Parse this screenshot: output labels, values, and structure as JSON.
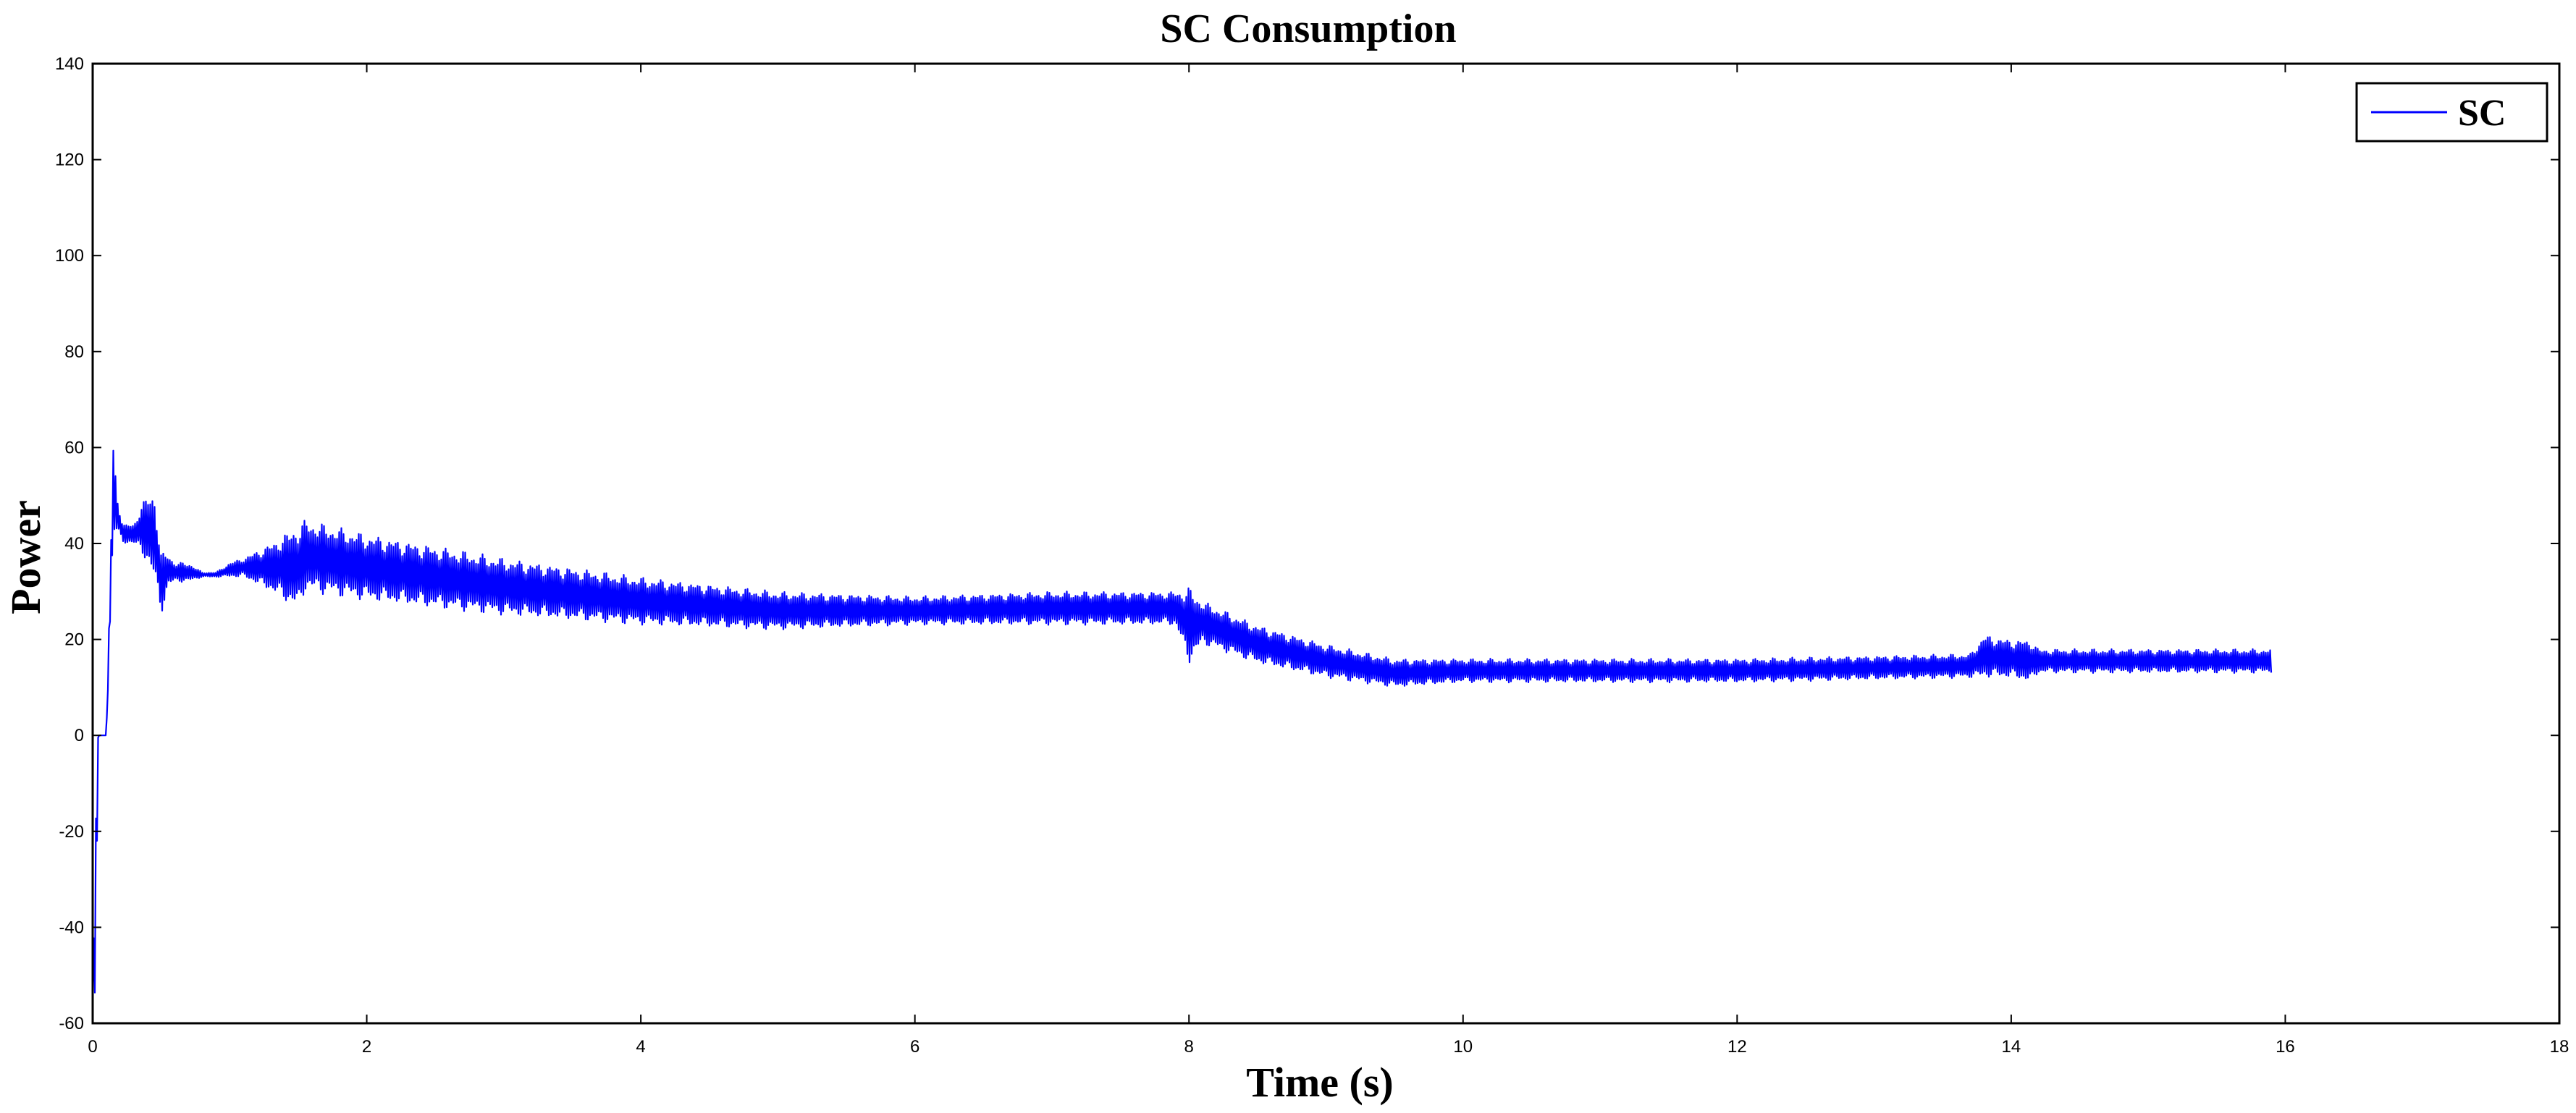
{
  "chart_data": {
    "type": "line",
    "title": "SC Consumption",
    "xlabel": "Time (s)",
    "ylabel": "Power",
    "xlim": [
      0,
      18
    ],
    "ylim": [
      -60,
      140
    ],
    "xticks": [
      0,
      2,
      4,
      6,
      8,
      10,
      12,
      14,
      16,
      18
    ],
    "yticks": [
      -60,
      -40,
      -20,
      0,
      20,
      40,
      60,
      80,
      100,
      120,
      140
    ],
    "xtick_labels": [
      "0",
      "2",
      "4",
      "6",
      "8",
      "10",
      "12",
      "14",
      "16",
      "18"
    ],
    "ytick_labels": [
      "-60",
      "-40",
      "-20",
      "0",
      "20",
      "40",
      "60",
      "80",
      "100",
      "120",
      "140"
    ],
    "legend_position": "top-right",
    "grid": false,
    "series": [
      {
        "name": "SC",
        "color": "#0000ff",
        "envelope": {
          "x": [
            0.0,
            0.02,
            0.04,
            0.1,
            0.15,
            0.18,
            0.22,
            0.3,
            0.35,
            0.4,
            0.45,
            0.5,
            0.55,
            0.6,
            0.7,
            0.8,
            0.9,
            1.0,
            1.1,
            1.3,
            1.5,
            1.55,
            2.0,
            3.0,
            4.0,
            5.0,
            6.0,
            7.0,
            7.9,
            8.0,
            8.1,
            8.5,
            9.0,
            9.5,
            10.0,
            12.0,
            13.7,
            13.8,
            14.0,
            14.15,
            14.2,
            15.0,
            15.9
          ],
          "upper": [
            -55,
            -20,
            0,
            0,
            61,
            50,
            44,
            44,
            48,
            50,
            51,
            38,
            38,
            36,
            36,
            34,
            34,
            36,
            37,
            40,
            44,
            45,
            42,
            37,
            33,
            30,
            29,
            30,
            30,
            31,
            28,
            23,
            19,
            16,
            16,
            16,
            17,
            21,
            20,
            20,
            18,
            18,
            18
          ],
          "lower": [
            -55,
            -55,
            0,
            0,
            42,
            42,
            40,
            40,
            38,
            36,
            32,
            25,
            31,
            32,
            32,
            33,
            33,
            33,
            33,
            30,
            26,
            30,
            28,
            25,
            23,
            22,
            23,
            23,
            23,
            15,
            19,
            15,
            12,
            10,
            11,
            11,
            12,
            12,
            12,
            11,
            13,
            13,
            13
          ]
        }
      }
    ]
  }
}
